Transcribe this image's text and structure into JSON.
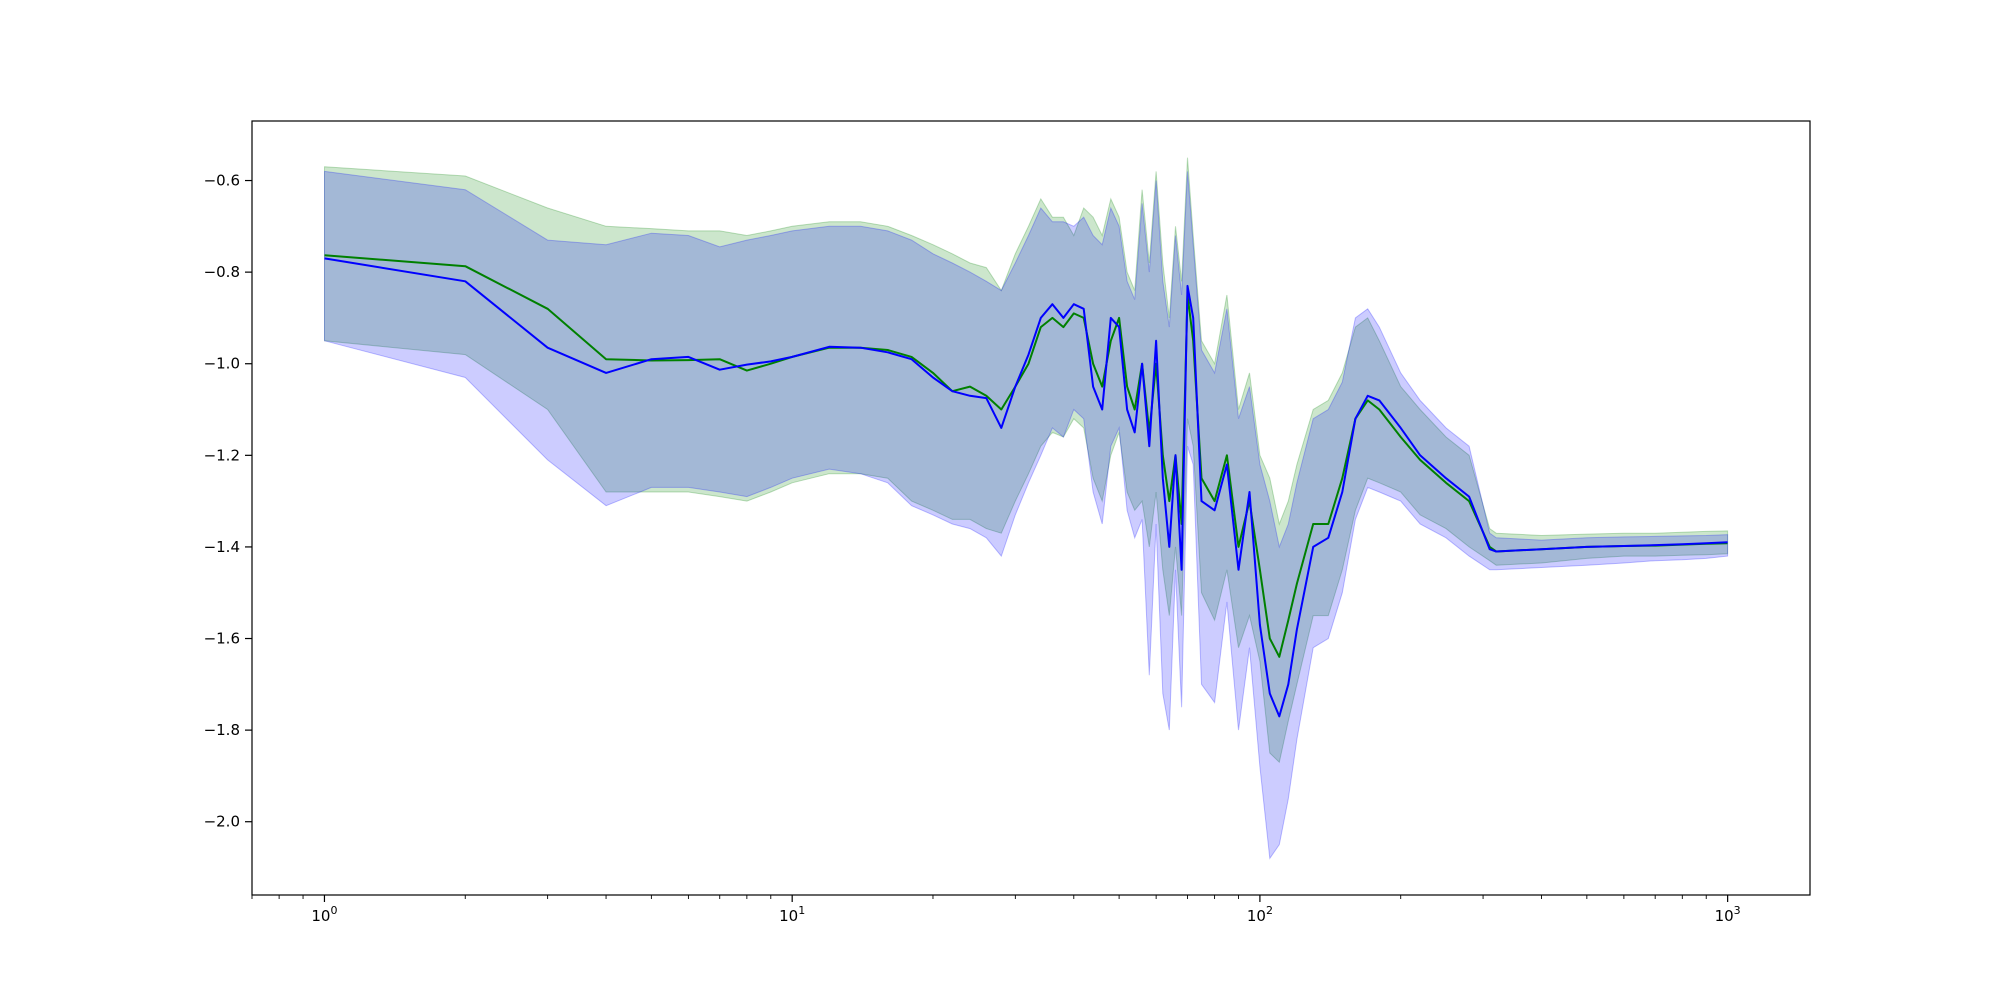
{
  "chart_data": {
    "type": "line",
    "title": "",
    "xlabel": "",
    "ylabel": "",
    "xscale": "log",
    "xlim": [
      0.7,
      1500
    ],
    "ylim": [
      -2.16,
      -0.47
    ],
    "grid": false,
    "x_ticks": [
      {
        "value": 1,
        "base": "10",
        "exp": "0"
      },
      {
        "value": 10,
        "base": "10",
        "exp": "1"
      },
      {
        "value": 100,
        "base": "10",
        "exp": "2"
      },
      {
        "value": 1000,
        "base": "10",
        "exp": "3"
      }
    ],
    "y_ticks": [
      {
        "value": -0.6,
        "label": "−0.6"
      },
      {
        "value": -0.8,
        "label": "−0.8"
      },
      {
        "value": -1.0,
        "label": "−1.0"
      },
      {
        "value": -1.2,
        "label": "−1.2"
      },
      {
        "value": -1.4,
        "label": "−1.4"
      },
      {
        "value": -1.6,
        "label": "−1.6"
      },
      {
        "value": -1.8,
        "label": "−1.8"
      },
      {
        "value": -2.0,
        "label": "−2.0"
      }
    ],
    "series": [
      {
        "color": "#008000",
        "band_color": "#008000",
        "band_opacity": 0.2,
        "x": [
          1,
          2,
          3,
          4,
          5,
          6,
          7,
          8,
          9,
          10,
          12,
          14,
          16,
          18,
          20,
          22,
          24,
          26,
          28,
          30,
          32,
          34,
          36,
          38,
          40,
          42,
          44,
          46,
          48,
          50,
          52,
          54,
          56,
          58,
          60,
          62,
          64,
          66,
          68,
          70,
          72,
          75,
          80,
          85,
          90,
          95,
          100,
          105,
          110,
          115,
          120,
          130,
          140,
          150,
          160,
          170,
          180,
          200,
          220,
          250,
          280,
          310,
          320,
          400,
          500,
          600,
          700,
          800,
          900,
          1000
        ],
        "y": [
          -0.763,
          -0.787,
          -0.88,
          -0.99,
          -0.993,
          -0.992,
          -0.99,
          -1.015,
          -1.0,
          -0.985,
          -0.965,
          -0.965,
          -0.97,
          -0.985,
          -1.02,
          -1.06,
          -1.05,
          -1.07,
          -1.1,
          -1.05,
          -1.0,
          -0.92,
          -0.9,
          -0.92,
          -0.89,
          -0.9,
          -1.0,
          -1.05,
          -0.95,
          -0.9,
          -1.05,
          -1.1,
          -1.0,
          -1.15,
          -1.0,
          -1.2,
          -1.3,
          -1.2,
          -1.35,
          -0.85,
          -0.95,
          -1.25,
          -1.3,
          -1.2,
          -1.4,
          -1.3,
          -1.45,
          -1.6,
          -1.64,
          -1.56,
          -1.48,
          -1.35,
          -1.35,
          -1.25,
          -1.12,
          -1.08,
          -1.1,
          -1.16,
          -1.21,
          -1.26,
          -1.3,
          -1.4,
          -1.41,
          -1.405,
          -1.4,
          -1.398,
          -1.397,
          -1.395,
          -1.393,
          -1.392
        ],
        "upper": [
          -0.57,
          -0.59,
          -0.66,
          -0.7,
          -0.705,
          -0.71,
          -0.71,
          -0.72,
          -0.71,
          -0.7,
          -0.69,
          -0.69,
          -0.7,
          -0.72,
          -0.74,
          -0.76,
          -0.78,
          -0.79,
          -0.84,
          -0.76,
          -0.7,
          -0.64,
          -0.68,
          -0.68,
          -0.72,
          -0.66,
          -0.68,
          -0.72,
          -0.64,
          -0.68,
          -0.8,
          -0.84,
          -0.62,
          -0.78,
          -0.58,
          -0.78,
          -0.9,
          -0.7,
          -0.82,
          -0.55,
          -0.72,
          -0.95,
          -1.0,
          -0.85,
          -1.1,
          -1.02,
          -1.2,
          -1.25,
          -1.35,
          -1.3,
          -1.22,
          -1.1,
          -1.08,
          -1.02,
          -0.92,
          -0.9,
          -0.95,
          -1.05,
          -1.1,
          -1.16,
          -1.2,
          -1.36,
          -1.37,
          -1.375,
          -1.372,
          -1.37,
          -1.37,
          -1.368,
          -1.366,
          -1.365
        ],
        "lower": [
          -0.95,
          -0.98,
          -1.1,
          -1.28,
          -1.28,
          -1.28,
          -1.29,
          -1.3,
          -1.28,
          -1.26,
          -1.24,
          -1.24,
          -1.25,
          -1.3,
          -1.32,
          -1.34,
          -1.34,
          -1.36,
          -1.37,
          -1.3,
          -1.24,
          -1.18,
          -1.15,
          -1.16,
          -1.12,
          -1.14,
          -1.25,
          -1.3,
          -1.2,
          -1.15,
          -1.28,
          -1.32,
          -1.3,
          -1.4,
          -1.28,
          -1.45,
          -1.55,
          -1.4,
          -1.55,
          -1.12,
          -1.18,
          -1.5,
          -1.56,
          -1.45,
          -1.62,
          -1.55,
          -1.65,
          -1.85,
          -1.87,
          -1.78,
          -1.7,
          -1.55,
          -1.55,
          -1.45,
          -1.32,
          -1.25,
          -1.26,
          -1.28,
          -1.33,
          -1.36,
          -1.4,
          -1.43,
          -1.44,
          -1.435,
          -1.425,
          -1.42,
          -1.42,
          -1.418,
          -1.417,
          -1.415
        ]
      },
      {
        "color": "#0000ff",
        "band_color": "#0000ff",
        "band_opacity": 0.2,
        "x": [
          1,
          2,
          3,
          4,
          5,
          6,
          7,
          8,
          9,
          10,
          12,
          14,
          16,
          18,
          20,
          22,
          24,
          26,
          28,
          30,
          32,
          34,
          36,
          38,
          40,
          42,
          44,
          46,
          48,
          50,
          52,
          54,
          56,
          58,
          60,
          62,
          64,
          66,
          68,
          70,
          72,
          75,
          80,
          85,
          90,
          95,
          100,
          105,
          110,
          115,
          120,
          130,
          140,
          150,
          160,
          170,
          180,
          200,
          220,
          250,
          280,
          310,
          320,
          400,
          500,
          600,
          700,
          800,
          900,
          1000
        ],
        "y": [
          -0.77,
          -0.82,
          -0.965,
          -1.02,
          -0.99,
          -0.985,
          -1.013,
          -1.002,
          -0.995,
          -0.985,
          -0.963,
          -0.965,
          -0.975,
          -0.99,
          -1.03,
          -1.06,
          -1.07,
          -1.075,
          -1.14,
          -1.05,
          -0.98,
          -0.9,
          -0.87,
          -0.9,
          -0.87,
          -0.88,
          -1.05,
          -1.1,
          -0.9,
          -0.92,
          -1.1,
          -1.15,
          -1.0,
          -1.18,
          -0.95,
          -1.25,
          -1.4,
          -1.2,
          -1.45,
          -0.83,
          -0.9,
          -1.3,
          -1.32,
          -1.22,
          -1.45,
          -1.28,
          -1.57,
          -1.72,
          -1.77,
          -1.7,
          -1.58,
          -1.4,
          -1.38,
          -1.28,
          -1.12,
          -1.07,
          -1.08,
          -1.14,
          -1.2,
          -1.25,
          -1.29,
          -1.405,
          -1.41,
          -1.405,
          -1.4,
          -1.398,
          -1.396,
          -1.394,
          -1.392,
          -1.39
        ],
        "upper": [
          -0.58,
          -0.62,
          -0.73,
          -0.74,
          -0.715,
          -0.72,
          -0.745,
          -0.73,
          -0.72,
          -0.71,
          -0.7,
          -0.7,
          -0.71,
          -0.73,
          -0.76,
          -0.78,
          -0.8,
          -0.82,
          -0.84,
          -0.78,
          -0.72,
          -0.66,
          -0.69,
          -0.69,
          -0.7,
          -0.68,
          -0.72,
          -0.74,
          -0.66,
          -0.7,
          -0.82,
          -0.86,
          -0.65,
          -0.8,
          -0.6,
          -0.82,
          -0.92,
          -0.72,
          -0.85,
          -0.58,
          -0.74,
          -0.97,
          -1.02,
          -0.88,
          -1.12,
          -1.05,
          -1.22,
          -1.3,
          -1.4,
          -1.35,
          -1.26,
          -1.12,
          -1.1,
          -1.04,
          -0.9,
          -0.88,
          -0.92,
          -1.02,
          -1.08,
          -1.14,
          -1.18,
          -1.37,
          -1.38,
          -1.385,
          -1.38,
          -1.378,
          -1.377,
          -1.376,
          -1.375,
          -1.373
        ],
        "lower": [
          -0.95,
          -1.03,
          -1.21,
          -1.31,
          -1.27,
          -1.27,
          -1.28,
          -1.29,
          -1.27,
          -1.25,
          -1.23,
          -1.24,
          -1.26,
          -1.31,
          -1.33,
          -1.35,
          -1.36,
          -1.38,
          -1.42,
          -1.33,
          -1.26,
          -1.2,
          -1.14,
          -1.16,
          -1.1,
          -1.12,
          -1.28,
          -1.35,
          -1.18,
          -1.14,
          -1.32,
          -1.38,
          -1.34,
          -1.68,
          -1.35,
          -1.72,
          -1.8,
          -1.45,
          -1.75,
          -1.18,
          -1.22,
          -1.7,
          -1.74,
          -1.52,
          -1.8,
          -1.62,
          -1.88,
          -2.08,
          -2.05,
          -1.95,
          -1.82,
          -1.62,
          -1.6,
          -1.5,
          -1.34,
          -1.27,
          -1.28,
          -1.3,
          -1.35,
          -1.38,
          -1.42,
          -1.45,
          -1.45,
          -1.445,
          -1.44,
          -1.435,
          -1.43,
          -1.428,
          -1.425,
          -1.42
        ]
      }
    ]
  }
}
